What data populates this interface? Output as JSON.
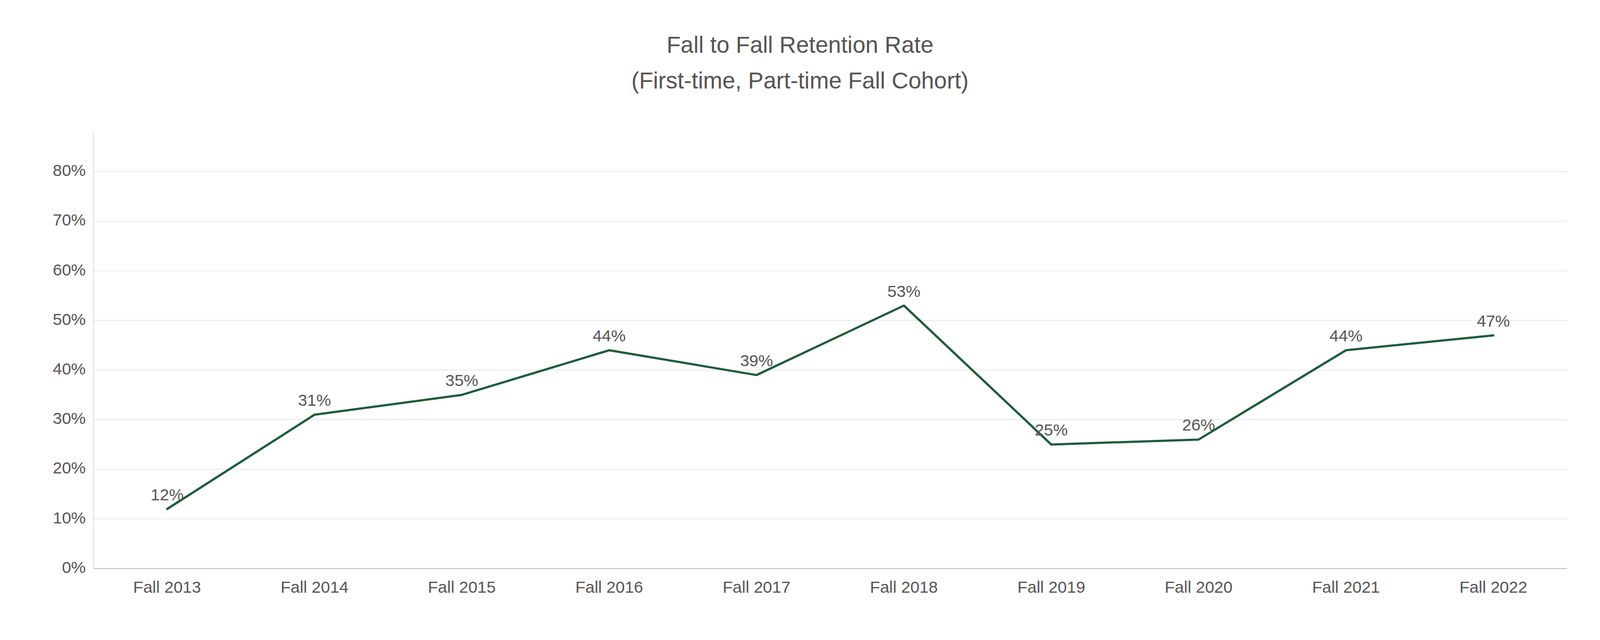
{
  "chart_data": {
    "type": "line",
    "title": "Fall to Fall Retention Rate",
    "subtitle": "(First-time, Part-time Fall Cohort)",
    "categories": [
      "Fall 2013",
      "Fall 2014",
      "Fall 2015",
      "Fall 2016",
      "Fall 2017",
      "Fall 2018",
      "Fall 2019",
      "Fall 2020",
      "Fall 2021",
      "Fall 2022"
    ],
    "values": [
      0.12,
      0.31,
      0.35,
      0.44,
      0.39,
      0.53,
      0.25,
      0.26,
      0.44,
      0.47
    ],
    "value_labels": [
      "12%",
      "31%",
      "35%",
      "44%",
      "39%",
      "53%",
      "25%",
      "26%",
      "44%",
      "47%"
    ],
    "data_labels": true,
    "color": "#1a5c38",
    "ylim": [
      0.0,
      0.88
    ],
    "yticks": [
      {
        "value": 0.0,
        "label": "0%"
      },
      {
        "value": 0.1,
        "label": "10%"
      },
      {
        "value": 0.2,
        "label": "20%"
      },
      {
        "value": 0.3,
        "label": "30%"
      },
      {
        "value": 0.4,
        "label": "40%"
      },
      {
        "value": 0.5,
        "label": "50%"
      },
      {
        "value": 0.6,
        "label": "60%"
      },
      {
        "value": 0.7,
        "label": "70%"
      },
      {
        "value": 0.8,
        "label": "80%"
      }
    ],
    "grid": true
  }
}
